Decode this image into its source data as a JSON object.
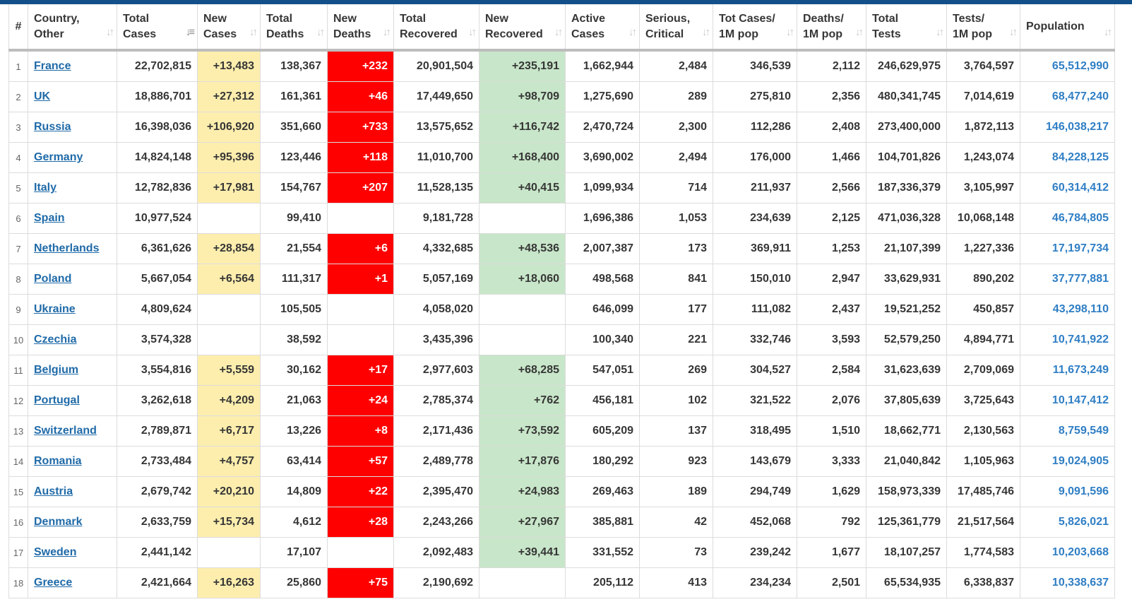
{
  "columns": [
    {
      "label": "#",
      "sortable": false
    },
    {
      "label": "Country,\nOther",
      "sortable": true
    },
    {
      "label": "Total\nCases",
      "sortable": true,
      "active_sort": true
    },
    {
      "label": "New\nCases",
      "sortable": true
    },
    {
      "label": "Total\nDeaths",
      "sortable": true
    },
    {
      "label": "New\nDeaths",
      "sortable": true
    },
    {
      "label": "Total\nRecovered",
      "sortable": true
    },
    {
      "label": "New\nRecovered",
      "sortable": true
    },
    {
      "label": "Active\nCases",
      "sortable": true
    },
    {
      "label": "Serious,\nCritical",
      "sortable": true
    },
    {
      "label": "Tot Cases/\n1M pop",
      "sortable": true
    },
    {
      "label": "Deaths/\n1M pop",
      "sortable": true
    },
    {
      "label": "Total\nTests",
      "sortable": true
    },
    {
      "label": "Tests/\n1M pop",
      "sortable": true
    },
    {
      "label": "Population",
      "sortable": true
    }
  ],
  "colors": {
    "new_cases_fill": "#fdeeae",
    "new_deaths_fill": "#ff0000",
    "new_recovered_fill": "#c8e6c9",
    "link": "#1f6aa8",
    "population": "#2f7ec4",
    "top_bar": "#13508a"
  },
  "sort_icons": {
    "inactive": "sort-both-icon",
    "active": "sort-desc-icon"
  },
  "rows": [
    {
      "rank": "1",
      "country": "France",
      "total_cases": "22,702,815",
      "new_cases": "+13,483",
      "total_deaths": "138,367",
      "new_deaths": "+232",
      "total_recovered": "20,901,504",
      "new_recovered": "+235,191",
      "active_cases": "1,662,944",
      "serious_critical": "2,484",
      "tot_cases_per_1m": "346,539",
      "deaths_per_1m": "2,112",
      "total_tests": "246,629,975",
      "tests_per_1m": "3,764,597",
      "population": "65,512,990"
    },
    {
      "rank": "2",
      "country": "UK",
      "total_cases": "18,886,701",
      "new_cases": "+27,312",
      "total_deaths": "161,361",
      "new_deaths": "+46",
      "total_recovered": "17,449,650",
      "new_recovered": "+98,709",
      "active_cases": "1,275,690",
      "serious_critical": "289",
      "tot_cases_per_1m": "275,810",
      "deaths_per_1m": "2,356",
      "total_tests": "480,341,745",
      "tests_per_1m": "7,014,619",
      "population": "68,477,240"
    },
    {
      "rank": "3",
      "country": "Russia",
      "total_cases": "16,398,036",
      "new_cases": "+106,920",
      "total_deaths": "351,660",
      "new_deaths": "+733",
      "total_recovered": "13,575,652",
      "new_recovered": "+116,742",
      "active_cases": "2,470,724",
      "serious_critical": "2,300",
      "tot_cases_per_1m": "112,286",
      "deaths_per_1m": "2,408",
      "total_tests": "273,400,000",
      "tests_per_1m": "1,872,113",
      "population": "146,038,217"
    },
    {
      "rank": "4",
      "country": "Germany",
      "total_cases": "14,824,148",
      "new_cases": "+95,396",
      "total_deaths": "123,446",
      "new_deaths": "+118",
      "total_recovered": "11,010,700",
      "new_recovered": "+168,400",
      "active_cases": "3,690,002",
      "serious_critical": "2,494",
      "tot_cases_per_1m": "176,000",
      "deaths_per_1m": "1,466",
      "total_tests": "104,701,826",
      "tests_per_1m": "1,243,074",
      "population": "84,228,125"
    },
    {
      "rank": "5",
      "country": "Italy",
      "total_cases": "12,782,836",
      "new_cases": "+17,981",
      "total_deaths": "154,767",
      "new_deaths": "+207",
      "total_recovered": "11,528,135",
      "new_recovered": "+40,415",
      "active_cases": "1,099,934",
      "serious_critical": "714",
      "tot_cases_per_1m": "211,937",
      "deaths_per_1m": "2,566",
      "total_tests": "187,336,379",
      "tests_per_1m": "3,105,997",
      "population": "60,314,412"
    },
    {
      "rank": "6",
      "country": "Spain",
      "total_cases": "10,977,524",
      "new_cases": "",
      "total_deaths": "99,410",
      "new_deaths": "",
      "total_recovered": "9,181,728",
      "new_recovered": "",
      "active_cases": "1,696,386",
      "serious_critical": "1,053",
      "tot_cases_per_1m": "234,639",
      "deaths_per_1m": "2,125",
      "total_tests": "471,036,328",
      "tests_per_1m": "10,068,148",
      "population": "46,784,805"
    },
    {
      "rank": "7",
      "country": "Netherlands",
      "total_cases": "6,361,626",
      "new_cases": "+28,854",
      "total_deaths": "21,554",
      "new_deaths": "+6",
      "total_recovered": "4,332,685",
      "new_recovered": "+48,536",
      "active_cases": "2,007,387",
      "serious_critical": "173",
      "tot_cases_per_1m": "369,911",
      "deaths_per_1m": "1,253",
      "total_tests": "21,107,399",
      "tests_per_1m": "1,227,336",
      "population": "17,197,734"
    },
    {
      "rank": "8",
      "country": "Poland",
      "total_cases": "5,667,054",
      "new_cases": "+6,564",
      "total_deaths": "111,317",
      "new_deaths": "+1",
      "total_recovered": "5,057,169",
      "new_recovered": "+18,060",
      "active_cases": "498,568",
      "serious_critical": "841",
      "tot_cases_per_1m": "150,010",
      "deaths_per_1m": "2,947",
      "total_tests": "33,629,931",
      "tests_per_1m": "890,202",
      "population": "37,777,881"
    },
    {
      "rank": "9",
      "country": "Ukraine",
      "total_cases": "4,809,624",
      "new_cases": "",
      "total_deaths": "105,505",
      "new_deaths": "",
      "total_recovered": "4,058,020",
      "new_recovered": "",
      "active_cases": "646,099",
      "serious_critical": "177",
      "tot_cases_per_1m": "111,082",
      "deaths_per_1m": "2,437",
      "total_tests": "19,521,252",
      "tests_per_1m": "450,857",
      "population": "43,298,110"
    },
    {
      "rank": "10",
      "country": "Czechia",
      "total_cases": "3,574,328",
      "new_cases": "",
      "total_deaths": "38,592",
      "new_deaths": "",
      "total_recovered": "3,435,396",
      "new_recovered": "",
      "active_cases": "100,340",
      "serious_critical": "221",
      "tot_cases_per_1m": "332,746",
      "deaths_per_1m": "3,593",
      "total_tests": "52,579,250",
      "tests_per_1m": "4,894,771",
      "population": "10,741,922"
    },
    {
      "rank": "11",
      "country": "Belgium",
      "total_cases": "3,554,816",
      "new_cases": "+5,559",
      "total_deaths": "30,162",
      "new_deaths": "+17",
      "total_recovered": "2,977,603",
      "new_recovered": "+68,285",
      "active_cases": "547,051",
      "serious_critical": "269",
      "tot_cases_per_1m": "304,527",
      "deaths_per_1m": "2,584",
      "total_tests": "31,623,639",
      "tests_per_1m": "2,709,069",
      "population": "11,673,249"
    },
    {
      "rank": "12",
      "country": "Portugal",
      "total_cases": "3,262,618",
      "new_cases": "+4,209",
      "total_deaths": "21,063",
      "new_deaths": "+24",
      "total_recovered": "2,785,374",
      "new_recovered": "+762",
      "active_cases": "456,181",
      "serious_critical": "102",
      "tot_cases_per_1m": "321,522",
      "deaths_per_1m": "2,076",
      "total_tests": "37,805,639",
      "tests_per_1m": "3,725,643",
      "population": "10,147,412"
    },
    {
      "rank": "13",
      "country": "Switzerland",
      "total_cases": "2,789,871",
      "new_cases": "+6,717",
      "total_deaths": "13,226",
      "new_deaths": "+8",
      "total_recovered": "2,171,436",
      "new_recovered": "+73,592",
      "active_cases": "605,209",
      "serious_critical": "137",
      "tot_cases_per_1m": "318,495",
      "deaths_per_1m": "1,510",
      "total_tests": "18,662,771",
      "tests_per_1m": "2,130,563",
      "population": "8,759,549"
    },
    {
      "rank": "14",
      "country": "Romania",
      "total_cases": "2,733,484",
      "new_cases": "+4,757",
      "total_deaths": "63,414",
      "new_deaths": "+57",
      "total_recovered": "2,489,778",
      "new_recovered": "+17,876",
      "active_cases": "180,292",
      "serious_critical": "923",
      "tot_cases_per_1m": "143,679",
      "deaths_per_1m": "3,333",
      "total_tests": "21,040,842",
      "tests_per_1m": "1,105,963",
      "population": "19,024,905"
    },
    {
      "rank": "15",
      "country": "Austria",
      "total_cases": "2,679,742",
      "new_cases": "+20,210",
      "total_deaths": "14,809",
      "new_deaths": "+22",
      "total_recovered": "2,395,470",
      "new_recovered": "+24,983",
      "active_cases": "269,463",
      "serious_critical": "189",
      "tot_cases_per_1m": "294,749",
      "deaths_per_1m": "1,629",
      "total_tests": "158,973,339",
      "tests_per_1m": "17,485,746",
      "population": "9,091,596"
    },
    {
      "rank": "16",
      "country": "Denmark",
      "total_cases": "2,633,759",
      "new_cases": "+15,734",
      "total_deaths": "4,612",
      "new_deaths": "+28",
      "total_recovered": "2,243,266",
      "new_recovered": "+27,967",
      "active_cases": "385,881",
      "serious_critical": "42",
      "tot_cases_per_1m": "452,068",
      "deaths_per_1m": "792",
      "total_tests": "125,361,779",
      "tests_per_1m": "21,517,564",
      "population": "5,826,021"
    },
    {
      "rank": "17",
      "country": "Sweden",
      "total_cases": "2,441,142",
      "new_cases": "",
      "total_deaths": "17,107",
      "new_deaths": "",
      "total_recovered": "2,092,483",
      "new_recovered": "+39,441",
      "active_cases": "331,552",
      "serious_critical": "73",
      "tot_cases_per_1m": "239,242",
      "deaths_per_1m": "1,677",
      "total_tests": "18,107,257",
      "tests_per_1m": "1,774,583",
      "population": "10,203,668"
    },
    {
      "rank": "18",
      "country": "Greece",
      "total_cases": "2,421,664",
      "new_cases": "+16,263",
      "total_deaths": "25,860",
      "new_deaths": "+75",
      "total_recovered": "2,190,692",
      "new_recovered": "",
      "active_cases": "205,112",
      "serious_critical": "413",
      "tot_cases_per_1m": "234,234",
      "deaths_per_1m": "2,501",
      "total_tests": "65,534,935",
      "tests_per_1m": "6,338,837",
      "population": "10,338,637"
    }
  ]
}
